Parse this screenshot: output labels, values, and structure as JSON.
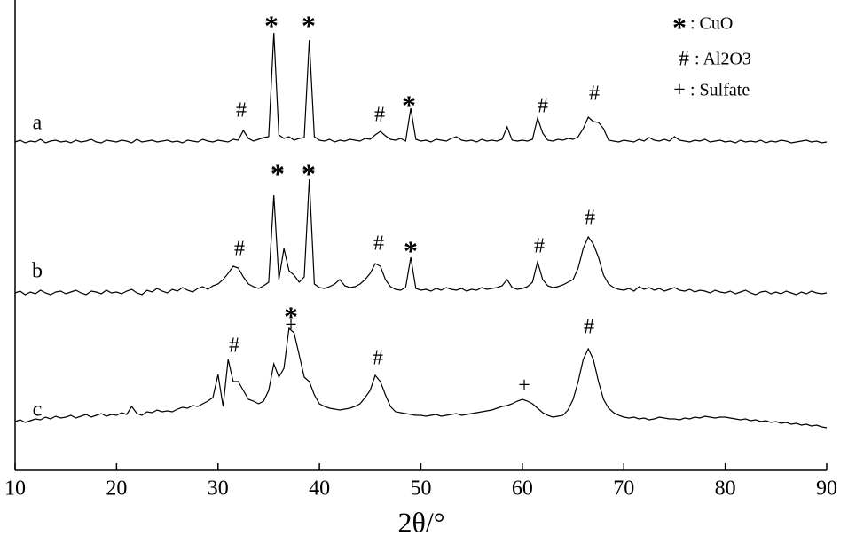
{
  "chart_data": {
    "type": "line",
    "xlabel": "2θ/°",
    "xlim": [
      10,
      90
    ],
    "xticks": [
      10,
      20,
      30,
      40,
      50,
      60,
      70,
      80,
      90
    ],
    "ylim": [
      0,
      530
    ],
    "x": [
      10,
      10.5,
      11,
      11.5,
      12,
      12.5,
      13,
      13.5,
      14,
      14.5,
      15,
      15.5,
      16,
      16.5,
      17,
      17.5,
      18,
      18.5,
      19,
      19.5,
      20,
      20.5,
      21,
      21.5,
      22,
      22.5,
      23,
      23.5,
      24,
      24.5,
      25,
      25.5,
      26,
      26.5,
      27,
      27.5,
      28,
      28.5,
      29,
      29.5,
      30,
      30.5,
      31,
      31.5,
      32,
      32.5,
      33,
      33.5,
      34,
      34.5,
      35,
      35.5,
      36,
      36.5,
      37,
      37.5,
      38,
      38.5,
      39,
      39.5,
      40,
      40.5,
      41,
      41.5,
      42,
      42.5,
      43,
      43.5,
      44,
      44.5,
      45,
      45.5,
      46,
      46.5,
      47,
      47.5,
      48,
      48.5,
      49,
      49.5,
      50,
      50.5,
      51,
      51.5,
      52,
      52.5,
      53,
      53.5,
      54,
      54.5,
      55,
      55.5,
      56,
      56.5,
      57,
      57.5,
      58,
      58.5,
      59,
      59.5,
      60,
      60.5,
      61,
      61.5,
      62,
      62.5,
      63,
      63.5,
      64,
      64.5,
      65,
      65.5,
      66,
      66.5,
      67,
      67.5,
      68,
      68.5,
      69,
      69.5,
      70,
      70.5,
      71,
      71.5,
      72,
      72.5,
      73,
      73.5,
      74,
      74.5,
      75,
      75.5,
      76,
      76.5,
      77,
      77.5,
      78,
      78.5,
      79,
      79.5,
      80,
      80.5,
      81,
      81.5,
      82,
      82.5,
      83,
      83.5,
      84,
      84.5,
      85,
      85.5,
      86,
      86.5,
      87,
      87.5,
      88,
      88.5,
      89,
      89.5,
      90
    ],
    "series": [
      {
        "name": "a",
        "color": "#000000",
        "values": [
          370,
          372,
          369,
          371,
          370,
          373,
          369,
          371,
          372,
          370,
          371,
          369,
          372,
          370,
          371,
          373,
          370,
          369,
          372,
          371,
          370,
          372,
          371,
          369,
          373,
          370,
          371,
          372,
          370,
          371,
          372,
          370,
          371,
          369,
          372,
          371,
          370,
          373,
          371,
          370,
          372,
          371,
          370,
          373,
          372,
          383,
          374,
          371,
          373,
          375,
          376,
          493,
          378,
          374,
          376,
          372,
          374,
          375,
          485,
          376,
          372,
          371,
          373,
          370,
          372,
          371,
          373,
          372,
          371,
          374,
          373,
          378,
          382,
          377,
          373,
          372,
          374,
          371,
          408,
          373,
          371,
          372,
          370,
          373,
          372,
          371,
          374,
          376,
          372,
          371,
          372,
          370,
          373,
          371,
          372,
          371,
          373,
          387,
          372,
          371,
          372,
          371,
          373,
          397,
          380,
          372,
          371,
          373,
          372,
          374,
          373,
          376,
          385,
          398,
          393,
          392,
          385,
          372,
          371,
          370,
          372,
          371,
          370,
          373,
          371,
          375,
          372,
          371,
          373,
          371,
          376,
          372,
          371,
          370,
          372,
          371,
          373,
          370,
          371,
          372,
          370,
          371,
          369,
          372,
          370,
          371,
          370,
          372,
          369,
          371,
          370,
          372,
          371,
          369,
          370,
          371,
          372,
          370,
          371,
          369,
          370
        ],
        "annotations": [
          "*",
          "*",
          "#",
          "#",
          "*",
          "#",
          "#"
        ]
      },
      {
        "name": "b",
        "color": "#000000",
        "values": [
          200,
          202,
          198,
          201,
          199,
          203,
          200,
          198,
          201,
          202,
          199,
          201,
          203,
          200,
          198,
          202,
          201,
          199,
          203,
          200,
          201,
          199,
          202,
          204,
          200,
          198,
          203,
          201,
          205,
          202,
          200,
          204,
          202,
          206,
          203,
          201,
          205,
          207,
          204,
          208,
          210,
          215,
          222,
          230,
          228,
          218,
          210,
          207,
          205,
          208,
          212,
          310,
          215,
          250,
          225,
          220,
          212,
          218,
          328,
          210,
          206,
          205,
          207,
          210,
          215,
          208,
          206,
          207,
          210,
          215,
          222,
          233,
          230,
          215,
          207,
          204,
          203,
          206,
          240,
          205,
          203,
          204,
          202,
          205,
          203,
          206,
          204,
          203,
          205,
          202,
          204,
          203,
          206,
          204,
          205,
          206,
          208,
          215,
          206,
          204,
          205,
          207,
          212,
          235,
          215,
          208,
          206,
          207,
          209,
          212,
          215,
          228,
          250,
          263,
          255,
          240,
          220,
          210,
          206,
          204,
          203,
          205,
          202,
          207,
          204,
          206,
          203,
          205,
          202,
          204,
          206,
          203,
          202,
          204,
          201,
          203,
          202,
          200,
          203,
          201,
          200,
          202,
          199,
          201,
          203,
          200,
          198,
          201,
          202,
          199,
          201,
          199,
          202,
          200,
          198,
          201,
          199,
          202,
          200,
          199,
          200
        ],
        "annotations": [
          "*",
          "*",
          "#",
          "#",
          "*",
          "#",
          "#"
        ]
      },
      {
        "name": "c",
        "color": "#000000",
        "values": [
          55,
          57,
          54,
          56,
          58,
          57,
          60,
          58,
          61,
          59,
          60,
          62,
          59,
          61,
          63,
          60,
          62,
          64,
          61,
          63,
          62,
          65,
          63,
          72,
          64,
          62,
          66,
          65,
          68,
          66,
          67,
          66,
          69,
          71,
          70,
          73,
          72,
          75,
          78,
          82,
          108,
          72,
          125,
          100,
          100,
          90,
          80,
          78,
          75,
          78,
          90,
          120,
          105,
          115,
          160,
          155,
          130,
          105,
          100,
          85,
          75,
          72,
          70,
          69,
          68,
          69,
          70,
          72,
          75,
          82,
          90,
          107,
          100,
          85,
          72,
          66,
          65,
          64,
          63,
          62,
          62,
          61,
          62,
          63,
          61,
          62,
          63,
          64,
          62,
          63,
          64,
          65,
          66,
          67,
          68,
          70,
          72,
          73,
          75,
          78,
          80,
          78,
          75,
          70,
          65,
          62,
          60,
          61,
          62,
          68,
          80,
          100,
          125,
          137,
          125,
          100,
          80,
          70,
          65,
          62,
          60,
          59,
          60,
          58,
          59,
          57,
          58,
          60,
          59,
          58,
          58,
          57,
          59,
          58,
          60,
          59,
          61,
          60,
          59,
          60,
          60,
          59,
          58,
          57,
          58,
          56,
          57,
          55,
          56,
          54,
          55,
          53,
          54,
          52,
          53,
          51,
          52,
          50,
          51,
          49,
          48
        ],
        "annotations": [
          "*",
          "+",
          "#",
          "#",
          "+",
          "#"
        ]
      }
    ],
    "legend": [
      {
        "symbol": "*",
        "label": ": CuO"
      },
      {
        "symbol": "#",
        "label": ": Al2O3"
      },
      {
        "symbol": "+",
        "label": ": Sulfate"
      }
    ]
  }
}
